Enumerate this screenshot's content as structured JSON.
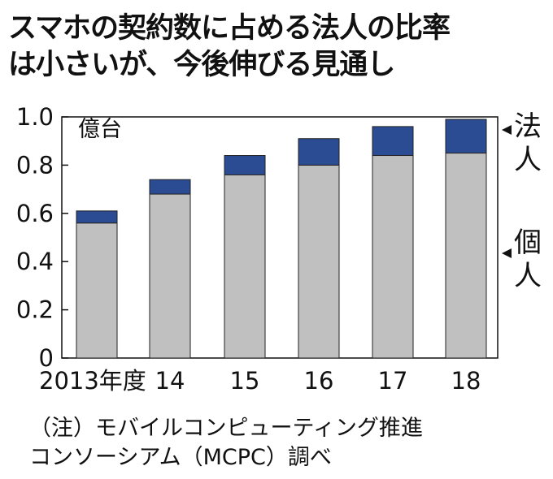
{
  "title": {
    "line1": "スマホの契約数に占める法人の比率",
    "line2": "は小さいが、今後伸びる見通し"
  },
  "note": {
    "line1": "（注）モバイルコンピューティング推進",
    "line2": "コンソーシアム（MCPC）調べ"
  },
  "chart_data": {
    "type": "bar",
    "stacked": true,
    "categories": [
      "2013年度",
      "14",
      "15",
      "16",
      "17",
      "18"
    ],
    "series": [
      {
        "name": "個人",
        "values": [
          0.56,
          0.68,
          0.76,
          0.8,
          0.84,
          0.85
        ],
        "color": "#c0c0c0"
      },
      {
        "name": "法人",
        "values": [
          0.05,
          0.06,
          0.08,
          0.11,
          0.12,
          0.14
        ],
        "color": "#2b4b92"
      }
    ],
    "ylabel": "億台",
    "ylim": [
      0,
      1.0
    ],
    "yticks": [
      "0",
      "0.2",
      "0.4",
      "0.6",
      "0.8",
      "1.0"
    ],
    "legend": "right, labels with arrow markers",
    "grid": false
  }
}
